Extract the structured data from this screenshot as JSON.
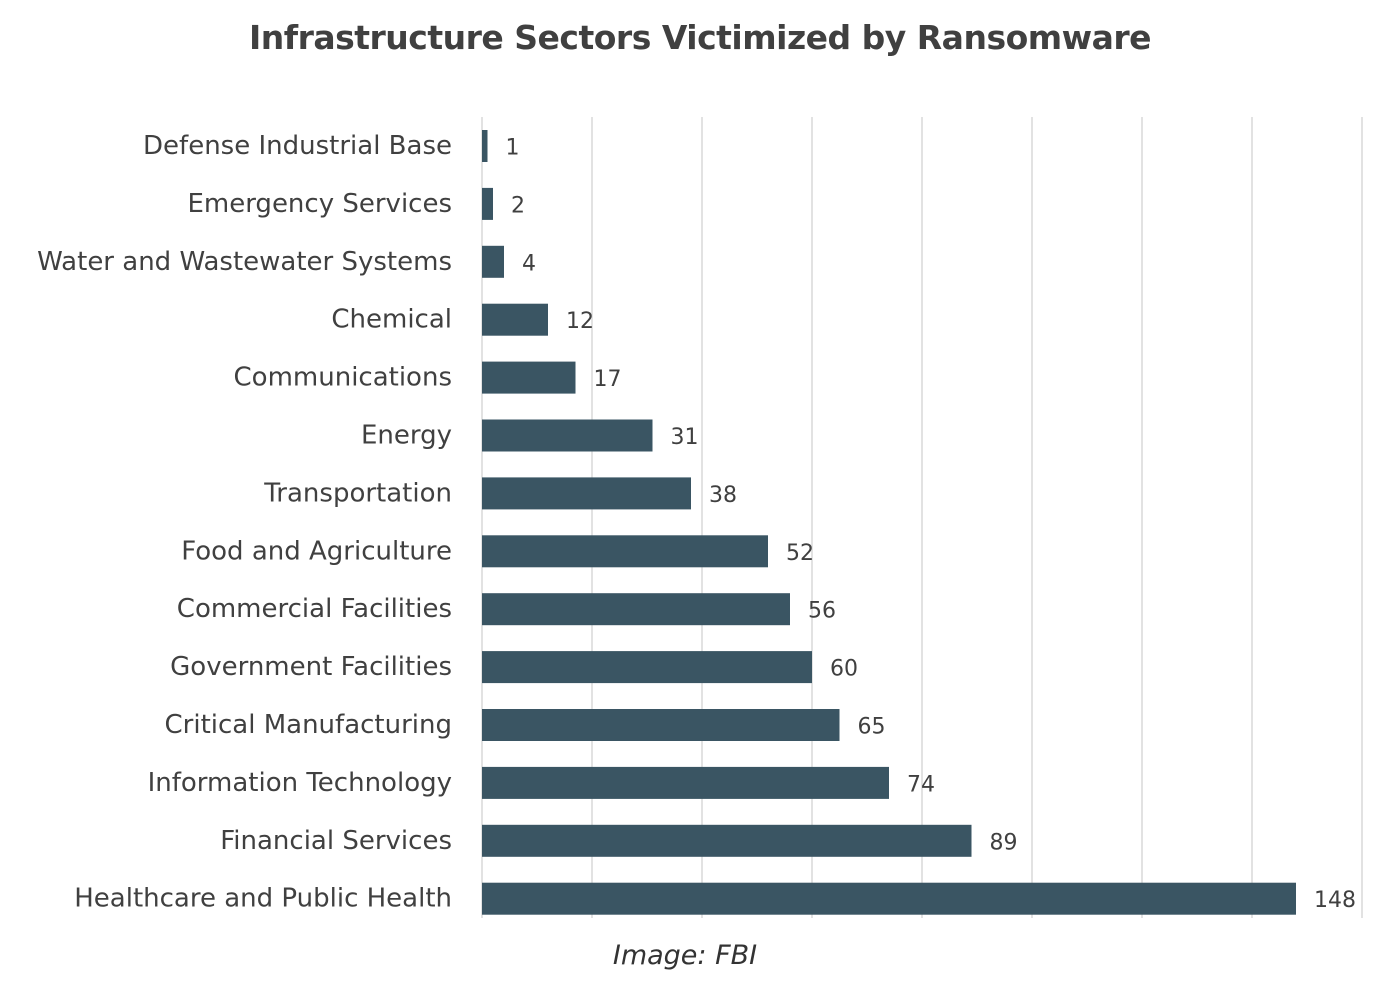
{
  "chart_data": {
    "type": "bar",
    "orientation": "horizontal",
    "title": "Infrastructure Sectors Victimized by Ransomware",
    "categories": [
      "Defense Industrial Base",
      "Emergency Services",
      "Water and Wastewater Systems",
      "Chemical",
      "Communications",
      "Energy",
      "Transportation",
      "Food and Agriculture",
      "Commercial Facilities",
      "Government Facilities",
      "Critical Manufacturing",
      "Information Technology",
      "Financial Services",
      "Healthcare and Public Health"
    ],
    "values": [
      1,
      2,
      4,
      12,
      17,
      31,
      38,
      52,
      56,
      60,
      65,
      74,
      89,
      148
    ],
    "xlim": [
      0,
      160
    ],
    "x_gridline_step": 20,
    "grid": true,
    "data_labels": true,
    "legend": "none",
    "bar_color": "#3a5563",
    "grid_color": "#d9d9d9"
  },
  "caption": "Image: FBI"
}
